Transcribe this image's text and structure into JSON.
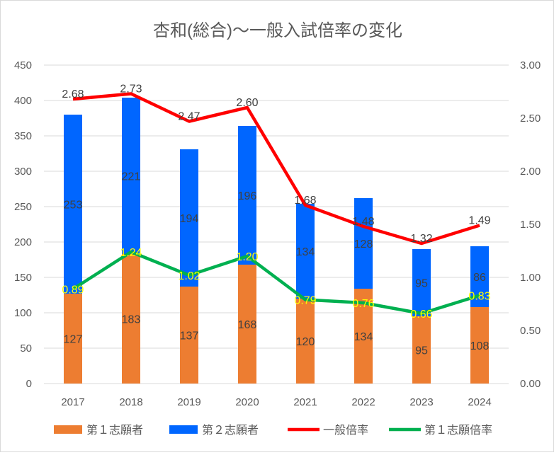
{
  "chart_data": {
    "type": "bar",
    "title": "杏和(総合)〜一般入試倍率の変化",
    "categories": [
      "2017",
      "2018",
      "2019",
      "2020",
      "2021",
      "2022",
      "2023",
      "2024"
    ],
    "ylim_left": [
      0,
      450
    ],
    "ylim_right": [
      0,
      3.0
    ],
    "left_ticks": [
      "0",
      "50",
      "100",
      "150",
      "200",
      "250",
      "300",
      "350",
      "400",
      "450"
    ],
    "right_ticks": [
      "0.00",
      "0.50",
      "1.00",
      "1.50",
      "2.00",
      "2.50",
      "3.00"
    ],
    "grid": true,
    "legend_position": "bottom",
    "series": [
      {
        "name": "第１志願者",
        "kind": "stacked-bar",
        "axis": "left",
        "color": "#ED7D31",
        "values": [
          127,
          183,
          137,
          168,
          120,
          134,
          95,
          108
        ]
      },
      {
        "name": "第２志願者",
        "kind": "stacked-bar",
        "axis": "left",
        "color": "#0066FF",
        "values": [
          253,
          221,
          194,
          196,
          134,
          128,
          95,
          86
        ]
      },
      {
        "name": "一般倍率",
        "kind": "line",
        "axis": "right",
        "color": "#FF0000",
        "values": [
          2.68,
          2.73,
          2.47,
          2.6,
          1.68,
          1.48,
          1.32,
          1.49
        ]
      },
      {
        "name": "第１志願倍率",
        "kind": "line",
        "axis": "right",
        "color": "#00B050",
        "values": [
          0.89,
          1.24,
          1.02,
          1.2,
          0.79,
          0.76,
          0.66,
          0.83
        ]
      }
    ]
  }
}
